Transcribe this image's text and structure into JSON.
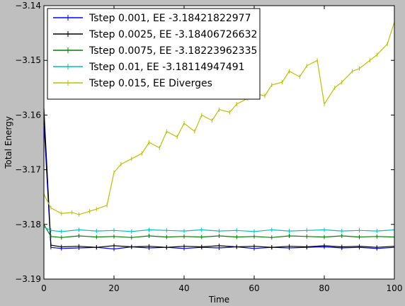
{
  "chart_data": {
    "type": "line",
    "xlabel": "Time",
    "ylabel": "Total Energy",
    "xlim": [
      0,
      100
    ],
    "ylim": [
      -3.19,
      -3.14
    ],
    "xticks": [
      0,
      20,
      40,
      60,
      80,
      100
    ],
    "xtick_labels": [
      "0",
      "20",
      "40",
      "60",
      "80",
      "100"
    ],
    "yticks": [
      -3.19,
      -3.18,
      -3.17,
      -3.16,
      -3.15,
      -3.14
    ],
    "ytick_labels": [
      "−3.19",
      "−3.18",
      "−3.17",
      "−3.16",
      "−3.15",
      "−3.14"
    ],
    "grid": false,
    "legend_position": "top-left",
    "background": "#bfbfbf",
    "plot_background": "#ffffff",
    "series": [
      {
        "name": "Tstep 0.001, EE -3.18421822977",
        "color": "#0000ff",
        "x": [
          0,
          2,
          5,
          10,
          15,
          20,
          25,
          30,
          35,
          40,
          45,
          50,
          55,
          60,
          65,
          70,
          75,
          80,
          85,
          90,
          95,
          100
        ],
        "y": [
          -3.1615,
          -3.1842,
          -3.1844,
          -3.1843,
          -3.1842,
          -3.1845,
          -3.1841,
          -3.1843,
          -3.1842,
          -3.1844,
          -3.1842,
          -3.1843,
          -3.1841,
          -3.1844,
          -3.1842,
          -3.1843,
          -3.1842,
          -3.1841,
          -3.1843,
          -3.1842,
          -3.1844,
          -3.1842
        ]
      },
      {
        "name": "Tstep 0.0025, EE -3.18406726632",
        "color": "#000000",
        "x": [
          0,
          2,
          5,
          10,
          15,
          20,
          25,
          30,
          35,
          40,
          45,
          50,
          55,
          60,
          65,
          70,
          75,
          80,
          85,
          90,
          95,
          100
        ],
        "y": [
          -3.1588,
          -3.1838,
          -3.1841,
          -3.184,
          -3.1842,
          -3.1839,
          -3.1841,
          -3.184,
          -3.1842,
          -3.184,
          -3.1841,
          -3.1839,
          -3.1841,
          -3.184,
          -3.1842,
          -3.184,
          -3.1841,
          -3.1839,
          -3.1841,
          -3.184,
          -3.1842,
          -3.184
        ]
      },
      {
        "name": "Tstep 0.0075, EE -3.18223962335",
        "color": "#008000",
        "x": [
          0,
          2,
          5,
          10,
          15,
          20,
          25,
          30,
          35,
          40,
          45,
          50,
          55,
          60,
          65,
          70,
          75,
          80,
          85,
          90,
          95,
          100
        ],
        "y": [
          -3.18,
          -3.1822,
          -3.1824,
          -3.1821,
          -3.1823,
          -3.1822,
          -3.1824,
          -3.1821,
          -3.1823,
          -3.1822,
          -3.1823,
          -3.1821,
          -3.1823,
          -3.1822,
          -3.1824,
          -3.1821,
          -3.1822,
          -3.1823,
          -3.1821,
          -3.1823,
          -3.1822,
          -3.1823
        ]
      },
      {
        "name": "Tstep 0.01, EE -3.18114947491",
        "color": "#00bfbf",
        "x": [
          0,
          2,
          5,
          10,
          15,
          20,
          25,
          30,
          35,
          40,
          45,
          50,
          55,
          60,
          65,
          70,
          75,
          80,
          85,
          90,
          95,
          100
        ],
        "y": [
          -3.1805,
          -3.1811,
          -3.1813,
          -3.181,
          -3.1812,
          -3.1811,
          -3.1813,
          -3.181,
          -3.1811,
          -3.1812,
          -3.181,
          -3.1812,
          -3.1811,
          -3.1813,
          -3.181,
          -3.1812,
          -3.1811,
          -3.181,
          -3.1812,
          -3.1811,
          -3.1812,
          -3.181
        ]
      },
      {
        "name": "Tstep 0.015, EE Diverges",
        "color": "#bfbf00",
        "x": [
          0,
          2,
          5,
          8,
          10,
          13,
          15,
          18,
          20,
          22,
          25,
          28,
          30,
          33,
          35,
          38,
          40,
          43,
          45,
          48,
          50,
          53,
          55,
          58,
          60,
          63,
          65,
          68,
          70,
          73,
          75,
          78,
          80,
          83,
          85,
          88,
          90,
          93,
          95,
          98,
          100
        ],
        "y": [
          -3.1745,
          -3.177,
          -3.178,
          -3.1778,
          -3.1782,
          -3.1776,
          -3.1772,
          -3.1765,
          -3.1705,
          -3.169,
          -3.168,
          -3.167,
          -3.165,
          -3.166,
          -3.163,
          -3.164,
          -3.1615,
          -3.163,
          -3.16,
          -3.161,
          -3.159,
          -3.1595,
          -3.158,
          -3.157,
          -3.156,
          -3.1565,
          -3.1545,
          -3.154,
          -3.152,
          -3.153,
          -3.151,
          -3.15,
          -3.158,
          -3.155,
          -3.154,
          -3.152,
          -3.1515,
          -3.15,
          -3.149,
          -3.147,
          -3.143
        ]
      }
    ]
  }
}
